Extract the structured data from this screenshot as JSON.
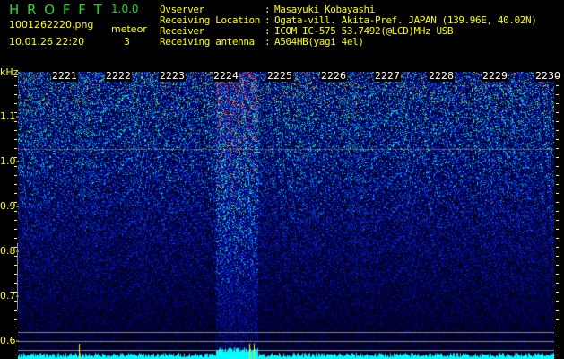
{
  "app": {
    "title": "H R O F F T",
    "version": "1.0.0"
  },
  "file": {
    "name": "1001262220.png",
    "datetime": "10.01.26 22:20"
  },
  "meteor": {
    "label": "meteor",
    "count": "3"
  },
  "station": [
    {
      "label": "Ovserver",
      "value": "Masayuki Kobayashi"
    },
    {
      "label": "Receiving Location",
      "value": "Ogata-vill. Akita-Pref. JAPAN (139.96E, 40.02N)"
    },
    {
      "label": "Receiver",
      "value": "ICOM IC-575 53.7492(@LCD)MHz USB"
    },
    {
      "label": "Receiving antenna",
      "value": "A504HB(yagi 4el)"
    }
  ],
  "spectrogram": {
    "y_unit": "kHz",
    "minute_labels": [
      "2221",
      "2222",
      "2223",
      "2224",
      "2225",
      "2226",
      "2227",
      "2228",
      "2229",
      "2230"
    ],
    "freq_labels": [
      "1.1-",
      "1.0-",
      "0.9-",
      "0.8-",
      "0.7-",
      "0.6-"
    ],
    "freq_values": [
      1.1,
      1.0,
      0.9,
      0.8,
      0.7,
      0.6
    ],
    "colors": {
      "text": "#ffff00",
      "title": "#22dd22",
      "level": "#00ffff",
      "marker": "#ffff00",
      "grid": "#888888"
    }
  }
}
